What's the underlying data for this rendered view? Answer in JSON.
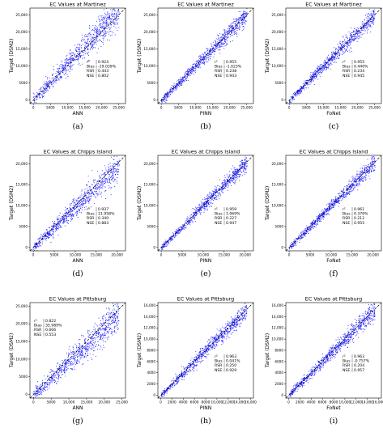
{
  "figure": {
    "panels": [
      {
        "caption": "(a)",
        "title": "EC Values at Martinez",
        "xlabel": "ANN",
        "ylabel": "Target (DSM2)"
      },
      {
        "caption": "(b)",
        "title": "EC Values at Martinez",
        "xlabel": "PINN",
        "ylabel": "Target (DSM2)"
      },
      {
        "caption": "(c)",
        "title": "EC Values at Martinez",
        "xlabel": "FoNet",
        "ylabel": "Target (DSM2)"
      },
      {
        "caption": "(d)",
        "title": "EC Values at Chipps Island",
        "xlabel": "ANN",
        "ylabel": "Target (DSM2)"
      },
      {
        "caption": "(e)",
        "title": "EC Values at Chipps Island",
        "xlabel": "PINN",
        "ylabel": "Target (DSM2)"
      },
      {
        "caption": "(f)",
        "title": "EC Values at Chipps Island",
        "xlabel": "FoNet",
        "ylabel": "Target (DSM2)"
      },
      {
        "caption": "(g)",
        "title": "EC Values at Pittsburg",
        "xlabel": "ANN",
        "ylabel": "Target (DSM2)"
      },
      {
        "caption": "(h)",
        "title": "EC Values at Pittsburg",
        "xlabel": "PINN",
        "ylabel": "Target (DSM2)"
      },
      {
        "caption": "(i)",
        "title": "EC Values at Pittsburg",
        "xlabel": "FoNet",
        "ylabel": "Target (DSM2)"
      }
    ]
  },
  "chart_data": [
    {
      "type": "scatter",
      "title": "EC Values at Martinez",
      "xlabel": "ANN",
      "ylabel": "Target (DSM2)",
      "xlim": [
        -1000,
        27000
      ],
      "ylim": [
        -1000,
        27000
      ],
      "xticks": [
        0,
        5000,
        10000,
        15000,
        20000,
        25000
      ],
      "xticklabels": [
        "0",
        "5000",
        "10,000",
        "15,000",
        "20,000",
        "25,000"
      ],
      "yticks": [
        0,
        5000,
        10000,
        15000,
        20000,
        25000
      ],
      "yticklabels": [
        "0",
        "5000",
        "10,000",
        "15,000",
        "20,000",
        "25,000"
      ],
      "reference_line": "y = x",
      "color": "#1a1aff",
      "points_center": [
        15000,
        15000
      ],
      "stats": {
        "r2": "0.924",
        "bias": "-19.039%",
        "rsr": "0.443",
        "nse": "0.802"
      },
      "stats_position": "lower-right"
    },
    {
      "type": "scatter",
      "title": "EC Values at Martinez",
      "xlabel": "PINN",
      "ylabel": "Target (DSM2)",
      "xlim": [
        -1000,
        27000
      ],
      "ylim": [
        -1000,
        27000
      ],
      "xticks": [
        0,
        5000,
        10000,
        15000,
        20000,
        25000
      ],
      "xticklabels": [
        "0",
        "5000",
        "10,000",
        "15,000",
        "20,000",
        "25,000"
      ],
      "yticks": [
        0,
        5000,
        10000,
        15000,
        20000,
        25000
      ],
      "yticklabels": [
        "0",
        "5000",
        "10,000",
        "15,000",
        "20,000",
        "25,000"
      ],
      "reference_line": "y = x",
      "color": "#1a1aff",
      "points_center": [
        14000,
        14000
      ],
      "stats": {
        "r2": "0.955",
        "bias": "-1.023%",
        "rsr": "0.238",
        "nse": "0.943"
      },
      "stats_position": "lower-right"
    },
    {
      "type": "scatter",
      "title": "EC Values at Martinez",
      "xlabel": "FoNet",
      "ylabel": "Target (DSM2)",
      "xlim": [
        -1000,
        27000
      ],
      "ylim": [
        -1000,
        27000
      ],
      "xticks": [
        0,
        5000,
        10000,
        15000,
        20000,
        25000
      ],
      "xticklabels": [
        "0",
        "5000",
        "10,000",
        "15,000",
        "20,000",
        "25,000"
      ],
      "yticks": [
        0,
        5000,
        10000,
        15000,
        20000,
        25000
      ],
      "yticklabels": [
        "0",
        "5000",
        "10,000",
        "15,000",
        "20,000",
        "25,000"
      ],
      "reference_line": "y = x",
      "color": "#1a1aff",
      "points_center": [
        14000,
        14000
      ],
      "stats": {
        "r2": "0.955",
        "bias": "0.440%",
        "rsr": "0.234",
        "nse": "0.945"
      },
      "stats_position": "lower-right"
    },
    {
      "type": "scatter",
      "title": "EC Values at Chipps Island",
      "xlabel": "ANN",
      "ylabel": "Target (DSM2)",
      "xlim": [
        -800,
        22000
      ],
      "ylim": [
        -800,
        22000
      ],
      "xticks": [
        0,
        5000,
        10000,
        15000,
        20000
      ],
      "xticklabels": [
        "0",
        "5000",
        "10,000",
        "15,000",
        "20,000"
      ],
      "yticks": [
        0,
        5000,
        10000,
        15000,
        20000
      ],
      "yticklabels": [
        "0",
        "5000",
        "10,000",
        "15,000",
        "20,000"
      ],
      "reference_line": "y = x",
      "color": "#1a1aff",
      "points_center": [
        11000,
        11000
      ],
      "stats": {
        "r2": "0.937",
        "bias": "11.958%",
        "rsr": "0.340",
        "nse": "0.883"
      },
      "stats_position": "lower-right"
    },
    {
      "type": "scatter",
      "title": "EC Values at Chipps Island",
      "xlabel": "PINN",
      "ylabel": "Target (DSM2)",
      "xlim": [
        -800,
        22000
      ],
      "ylim": [
        -800,
        22000
      ],
      "xticks": [
        0,
        5000,
        10000,
        15000,
        20000
      ],
      "xticklabels": [
        "0",
        "5000",
        "10,000",
        "15,000",
        "20,000"
      ],
      "yticks": [
        0,
        5000,
        10000,
        15000,
        20000
      ],
      "yticklabels": [
        "0",
        "5000",
        "10,000",
        "15,000",
        "20,000"
      ],
      "reference_line": "y = x",
      "color": "#1a1aff",
      "points_center": [
        10000,
        10000
      ],
      "stats": {
        "r2": "0.959",
        "bias": "1.069%",
        "rsr": "0.227",
        "nse": "0.947"
      },
      "stats_position": "lower-right"
    },
    {
      "type": "scatter",
      "title": "EC Values at Chipps Island",
      "xlabel": "FoNet",
      "ylabel": "Target (DSM2)",
      "xlim": [
        -800,
        22000
      ],
      "ylim": [
        -800,
        22000
      ],
      "xticks": [
        0,
        5000,
        10000,
        15000,
        20000
      ],
      "xticklabels": [
        "0",
        "5000",
        "10,000",
        "15,000",
        "20,000"
      ],
      "yticks": [
        0,
        5000,
        10000,
        15000,
        20000
      ],
      "yticklabels": [
        "0",
        "5000",
        "10,000",
        "15,000",
        "20,000"
      ],
      "reference_line": "y = x",
      "color": "#1a1aff",
      "points_center": [
        10000,
        10000
      ],
      "stats": {
        "r2": "0.961",
        "bias": "0.376%",
        "rsr": "0.212",
        "nse": "0.955"
      },
      "stats_position": "lower-right"
    },
    {
      "type": "scatter",
      "title": "EC Values at Pittsburg",
      "xlabel": "ANN",
      "ylabel": "Target (DSM2)",
      "xlim": [
        -1000,
        26000
      ],
      "ylim": [
        -1000,
        26000
      ],
      "xticks": [
        0,
        5000,
        10000,
        15000,
        20000,
        25000
      ],
      "xticklabels": [
        "0",
        "5000",
        "10,000",
        "15,000",
        "20,000",
        "25,000"
      ],
      "yticks": [
        0,
        5000,
        10000,
        15000,
        20000,
        25000
      ],
      "yticklabels": [
        "0",
        "5000",
        "10,000",
        "15,000",
        "20,000",
        "25,000"
      ],
      "reference_line": "y = x",
      "color": "#1a1aff",
      "points_center": [
        7000,
        6000
      ],
      "stats": {
        "r2": "0.822",
        "bias": "35.989%",
        "rsr": "0.666",
        "nse": "0.553"
      },
      "stats_position": "upper-left"
    },
    {
      "type": "scatter",
      "title": "EC Values at Pittsburg",
      "xlabel": "PINN",
      "ylabel": "Target (DSM2)",
      "xlim": [
        -500,
        16500
      ],
      "ylim": [
        -500,
        16500
      ],
      "xticks": [
        0,
        2000,
        4000,
        6000,
        8000,
        10000,
        12000,
        14000,
        16000
      ],
      "xticklabels": [
        "0",
        "2000",
        "4000",
        "6000",
        "8000",
        "10,000",
        "12,000",
        "14,000",
        "16,000"
      ],
      "yticks": [
        0,
        2000,
        4000,
        6000,
        8000,
        10000,
        12000,
        14000,
        16000
      ],
      "yticklabels": [
        "0",
        "2000",
        "4000",
        "6000",
        "8000",
        "10,000",
        "12,000",
        "14,000",
        "16,000"
      ],
      "reference_line": "y = x",
      "color": "#1a1aff",
      "points_center": [
        7000,
        7000
      ],
      "stats": {
        "r2": "0.963",
        "bias": "0.041%",
        "rsr": "0.250",
        "nse": "0.929"
      },
      "stats_position": "lower-right"
    },
    {
      "type": "scatter",
      "title": "EC Values at Pittsburg",
      "xlabel": "FoNet",
      "ylabel": "Target (DSM2)",
      "xlim": [
        -500,
        16500
      ],
      "ylim": [
        -500,
        16500
      ],
      "xticks": [
        0,
        2000,
        4000,
        6000,
        8000,
        10000,
        12000,
        14000,
        16000
      ],
      "xticklabels": [
        "0",
        "2000",
        "4000",
        "6000",
        "8000",
        "10,000",
        "12,000",
        "14,000",
        "16,000"
      ],
      "yticks": [
        0,
        2000,
        4000,
        6000,
        8000,
        10000,
        12000,
        14000,
        16000
      ],
      "yticklabels": [
        "0",
        "2000",
        "4000",
        "6000",
        "8000",
        "10,000",
        "12,000",
        "14,000",
        "16,000"
      ],
      "reference_line": "y = x",
      "color": "#1a1aff",
      "points_center": [
        7000,
        7000
      ],
      "stats": {
        "r2": "0.963",
        "bias": "-0.757%",
        "rsr": "0.204",
        "nse": "0.957"
      },
      "stats_position": "lower-right"
    }
  ]
}
